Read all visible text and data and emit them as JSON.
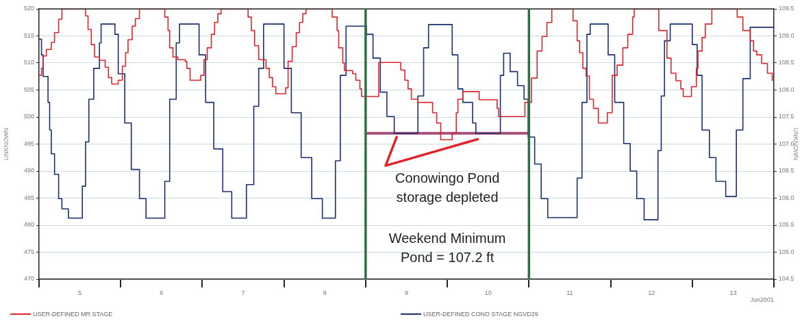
{
  "chart_data": {
    "type": "line",
    "xlabel": "Jun2001",
    "ylabel": "UNKNOWN",
    "y2label": "UNKNOWN",
    "xlim": [
      5,
      14
    ],
    "xticks": [
      {
        "value": 5,
        "label": null
      },
      {
        "value": 5.5,
        "label": "5"
      },
      {
        "value": 6,
        "label": null
      },
      {
        "value": 6.5,
        "label": "6"
      },
      {
        "value": 7,
        "label": null
      },
      {
        "value": 7.5,
        "label": "7"
      },
      {
        "value": 8,
        "label": null
      },
      {
        "value": 8.5,
        "label": "8"
      },
      {
        "value": 9,
        "label": null
      },
      {
        "value": 9.5,
        "label": "9"
      },
      {
        "value": 10,
        "label": null
      },
      {
        "value": 10.5,
        "label": "10"
      },
      {
        "value": 11,
        "label": null
      },
      {
        "value": 11.5,
        "label": "11"
      },
      {
        "value": 12,
        "label": null
      },
      {
        "value": 12.5,
        "label": "12"
      },
      {
        "value": 13,
        "label": null
      },
      {
        "value": 13.5,
        "label": "13"
      },
      {
        "value": 14,
        "label": null
      }
    ],
    "ylim": [
      470,
      520
    ],
    "yticks": [
      470,
      475,
      480,
      485,
      490,
      495,
      500,
      505,
      510,
      515,
      520
    ],
    "y2lim": [
      104.5,
      109.5
    ],
    "y2ticks": [
      104.5,
      {
        "value": 105,
        "label": "105.0"
      },
      105.5,
      {
        "value": 106,
        "label": "106.0"
      },
      106.5,
      {
        "value": 107,
        "label": "107.0"
      },
      107.5,
      {
        "value": 108,
        "label": "108.0"
      },
      108.5,
      {
        "value": 109,
        "label": "109.0"
      },
      109.5
    ],
    "grid": "y",
    "legend": "bottom",
    "series": [
      {
        "name": "USER-DEFINED MR STAGE",
        "type": "step",
        "color": "#e0242c",
        "axis": "y",
        "x": [
          5,
          5.03,
          5.05,
          5.09,
          5.15,
          5.19,
          5.24,
          5.28,
          5.57,
          5.6,
          5.64,
          5.68,
          5.74,
          5.81,
          5.85,
          5.89,
          5.97,
          6.02,
          6.06,
          6.09,
          6.14,
          6.18,
          6.23,
          6.54,
          6.58,
          6.6,
          6.64,
          6.7,
          6.79,
          6.81,
          6.85,
          6.98,
          7.02,
          7.06,
          7.11,
          7.15,
          7.19,
          7.23,
          7.56,
          7.6,
          7.64,
          7.69,
          7.78,
          7.82,
          7.86,
          7.9,
          8.02,
          8.05,
          8.1,
          8.15,
          8.19,
          8.23,
          8.27,
          8.59,
          8.65,
          8.67,
          8.72,
          8.74,
          8.84,
          8.88,
          8.93,
          8.95,
          9.16,
          9.43,
          9.48,
          9.52,
          9.56,
          9.64,
          9.82,
          9.87,
          9.92,
          10.06,
          10.11,
          10.13,
          10.19,
          10.39,
          10.61,
          10.63,
          10.95,
          11.03,
          11.1,
          11.16,
          11.22,
          11.28,
          11.54,
          11.59,
          11.62,
          11.66,
          11.7,
          11.74,
          11.79,
          11.85,
          11.96,
          12.02,
          12.08,
          12.15,
          12.21,
          12.27,
          12.29,
          12.59,
          12.69,
          12.74,
          12.8,
          12.86,
          12.89,
          12.99,
          13.05,
          13.07,
          13.12,
          13.16,
          13.24,
          13.55,
          13.62,
          13.71,
          13.75,
          13.79,
          13.85,
          13.92,
          13.98,
          14
        ],
        "values": [
          507.7,
          509.0,
          511.3,
          512.5,
          513.8,
          515.6,
          518.1,
          520,
          518.7,
          516.2,
          513.4,
          511.1,
          510.5,
          509.2,
          507.3,
          506.1,
          506.8,
          509.4,
          511.9,
          514.3,
          516.8,
          518.2,
          520,
          518.5,
          516.0,
          512.8,
          511.1,
          510.6,
          510.3,
          509.0,
          506.8,
          507.7,
          510.6,
          512.8,
          515.3,
          517.5,
          519.1,
          520,
          518.5,
          516.0,
          513.2,
          510.6,
          509.0,
          507.3,
          505.6,
          504.3,
          505.4,
          510.3,
          513.0,
          515.6,
          517.5,
          519.1,
          520,
          518.5,
          516.0,
          512.8,
          510.0,
          508.6,
          508.0,
          506.8,
          505.2,
          503.8,
          510.1,
          508.7,
          506.8,
          505.2,
          503.3,
          502.7,
          500.8,
          498.9,
          495.8,
          497.0,
          500.8,
          503.3,
          504.7,
          503.2,
          501.6,
          500.1,
          502.7,
          507.2,
          512.2,
          514.9,
          517.5,
          520,
          517.8,
          514.1,
          511.9,
          509.0,
          507.6,
          503.3,
          501.6,
          498.9,
          500.8,
          507.7,
          509.6,
          512.8,
          515.3,
          518.5,
          520,
          516.0,
          510.9,
          508.1,
          506.7,
          505.2,
          503.8,
          505.6,
          509.0,
          512.2,
          514.7,
          517.2,
          520,
          518.5,
          516.0,
          514.1,
          512.2,
          511.5,
          509.9,
          508.1,
          506.8,
          506.8
        ]
      },
      {
        "name": "USER-DEFINED CONO STAGE NGVD29",
        "type": "step",
        "color": "#1a2f6e",
        "axis": "y2",
        "x": [
          5,
          5.03,
          5.05,
          5.11,
          5.13,
          5.15,
          5.19,
          5.24,
          5.28,
          5.36,
          5.53,
          5.57,
          5.61,
          5.67,
          5.74,
          5.76,
          5.93,
          5.97,
          6.05,
          6.13,
          6.23,
          6.31,
          6.54,
          6.6,
          6.68,
          6.72,
          6.96,
          7.04,
          7.14,
          7.25,
          7.36,
          7.54,
          7.63,
          7.69,
          7.75,
          8.0,
          8.09,
          8.21,
          8.34,
          8.47,
          8.63,
          8.69,
          8.76,
          9.01,
          9.09,
          9.18,
          9.26,
          9.35,
          9.64,
          9.71,
          9.77,
          10.06,
          10.13,
          10.19,
          10.31,
          10.35,
          10.65,
          10.69,
          10.77,
          10.86,
          10.94,
          10.99,
          11.07,
          11.15,
          11.23,
          11.59,
          11.65,
          11.71,
          11.75,
          11.97,
          12.05,
          12.16,
          12.24,
          12.32,
          12.41,
          12.58,
          12.62,
          12.66,
          12.73,
          13.0,
          13.06,
          13.12,
          13.21,
          13.29,
          13.41,
          13.54,
          13.62,
          13.71,
          14
        ],
        "values": [
          108.94,
          108.65,
          108.25,
          107.77,
          107.26,
          106.82,
          106.44,
          105.99,
          105.8,
          105.63,
          106.22,
          107.04,
          107.83,
          108.4,
          108.87,
          109.22,
          109.03,
          108.3,
          107.39,
          106.53,
          105.99,
          105.63,
          106.31,
          107.83,
          108.87,
          109.22,
          108.65,
          107.77,
          106.91,
          106.12,
          105.63,
          106.25,
          107.7,
          108.4,
          109.22,
          108.4,
          107.58,
          106.75,
          105.99,
          105.63,
          106.69,
          108.27,
          109.18,
          109.03,
          108.59,
          107.96,
          107.51,
          107.2,
          107.89,
          108.78,
          109.21,
          108.65,
          108.02,
          107.77,
          107.39,
          107.2,
          108.27,
          108.68,
          108.34,
          108.08,
          107.83,
          107.13,
          106.63,
          105.99,
          105.64,
          106.37,
          107.77,
          109.03,
          109.22,
          108.65,
          107.77,
          107.01,
          106.5,
          105.99,
          105.6,
          106.88,
          107.89,
          108.91,
          109.22,
          108.84,
          108.27,
          107.26,
          106.75,
          106.31,
          106.03,
          107.26,
          108.21,
          109.16,
          109.16
        ]
      },
      {
        "type": "line",
        "color": "#a8507a",
        "axis": "y2",
        "x": [
          9,
          11
        ],
        "values": [
          107.2,
          107.2
        ]
      }
    ],
    "ref_lines": [
      {
        "axis": "x",
        "value": 9,
        "color": "#2f6e45"
      },
      {
        "axis": "x",
        "value": 11,
        "color": "#2f6e45"
      }
    ],
    "annotations": [
      "Conowingo Pond storage depleted",
      "Weekend Minimum Pond = 107.2 ft"
    ]
  }
}
